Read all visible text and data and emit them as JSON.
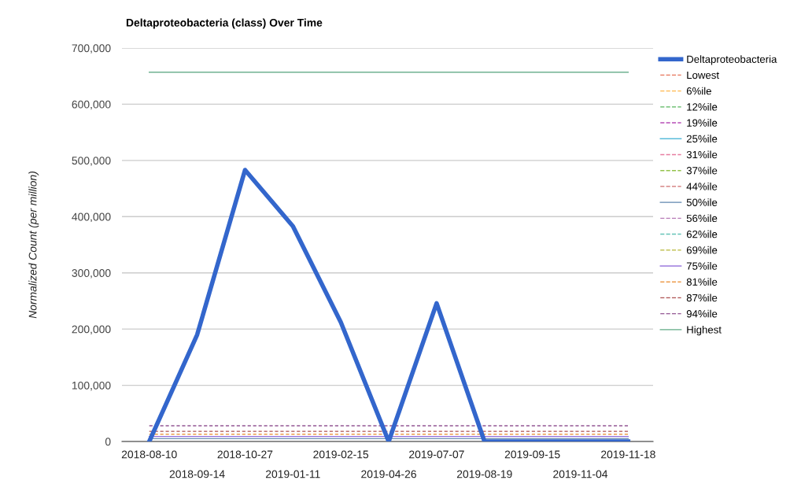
{
  "chart_data": {
    "type": "line",
    "title": "Deltaproteobacteria (class) Over Time",
    "ylabel": "Normalized Count (per million)",
    "categories": [
      "2018-08-10",
      "2018-09-14",
      "2018-10-27",
      "2019-01-11",
      "2019-02-15",
      "2019-04-26",
      "2019-07-07",
      "2019-08-19",
      "2019-09-15",
      "2019-11-04",
      "2019-11-18"
    ],
    "ylim": [
      0,
      700000
    ],
    "yticks": [
      0,
      {
        "value": 100000,
        "label": "100,000"
      },
      {
        "value": 200000,
        "label": "200,000"
      },
      {
        "value": 300000,
        "label": "300,000"
      },
      {
        "value": 400000,
        "label": "400,000"
      },
      {
        "value": 500000,
        "label": "500,000"
      },
      {
        "value": 600000,
        "label": "600,000"
      },
      {
        "value": 700000,
        "label": "700,000"
      }
    ],
    "grid": "y",
    "legend": "right",
    "marker": "none",
    "series": [
      {
        "name": "Deltaproteobacteria",
        "color": "#3366cc",
        "line_style": "solid",
        "values": [
          0,
          190000,
          483000,
          383000,
          212000,
          0,
          246000,
          0,
          0,
          0,
          0
        ]
      },
      {
        "name": "Lowest",
        "color": "#dc3912",
        "line_style": "dashed",
        "values": [
          null,
          null,
          null,
          null,
          null,
          null,
          null,
          null,
          null,
          null,
          null
        ]
      },
      {
        "name": "6%ile",
        "color": "#ff9900",
        "line_style": "dashed",
        "values": [
          null,
          null,
          null,
          null,
          null,
          null,
          null,
          null,
          null,
          null,
          null
        ]
      },
      {
        "name": "12%ile",
        "color": "#109618",
        "line_style": "dashed",
        "values": [
          null,
          null,
          null,
          null,
          null,
          null,
          null,
          null,
          null,
          null,
          null
        ]
      },
      {
        "name": "19%ile",
        "color": "#990099",
        "line_style": "dashed",
        "values": [
          null,
          null,
          null,
          null,
          null,
          null,
          null,
          null,
          null,
          null,
          null
        ]
      },
      {
        "name": "25%ile",
        "color": "#0099c6",
        "line_style": "solid",
        "values": [
          null,
          null,
          null,
          null,
          null,
          null,
          null,
          null,
          null,
          null,
          null
        ]
      },
      {
        "name": "31%ile",
        "color": "#dd4477",
        "line_style": "dashed",
        "values": [
          null,
          null,
          null,
          null,
          null,
          null,
          null,
          null,
          null,
          null,
          null
        ]
      },
      {
        "name": "37%ile",
        "color": "#66aa00",
        "line_style": "dashed",
        "values": [
          null,
          null,
          null,
          null,
          null,
          null,
          null,
          null,
          null,
          null,
          null
        ]
      },
      {
        "name": "44%ile",
        "color": "#b82e2e",
        "line_style": "dashed",
        "values": [
          null,
          null,
          null,
          null,
          null,
          null,
          null,
          null,
          null,
          null,
          null
        ]
      },
      {
        "name": "50%ile",
        "color": "#316395",
        "line_style": "solid",
        "values": [
          5000,
          5000,
          5000,
          5000,
          5000,
          5000,
          5000,
          5000,
          5000,
          5000,
          5000
        ]
      },
      {
        "name": "56%ile",
        "color": "#994499",
        "line_style": "dashed",
        "values": [
          null,
          null,
          null,
          null,
          null,
          null,
          null,
          null,
          null,
          null,
          null
        ]
      },
      {
        "name": "62%ile",
        "color": "#22aa99",
        "line_style": "dashed",
        "values": [
          null,
          null,
          null,
          null,
          null,
          null,
          null,
          null,
          null,
          null,
          null
        ]
      },
      {
        "name": "69%ile",
        "color": "#aaaa11",
        "line_style": "dashed",
        "values": [
          null,
          null,
          null,
          null,
          null,
          null,
          null,
          null,
          null,
          null,
          null
        ]
      },
      {
        "name": "75%ile",
        "color": "#6633cc",
        "line_style": "solid",
        "values": [
          9000,
          9000,
          9000,
          9000,
          9000,
          9000,
          9000,
          9000,
          9000,
          9000,
          9000
        ]
      },
      {
        "name": "81%ile",
        "color": "#e67300",
        "line_style": "dashed",
        "values": [
          13000,
          13000,
          13000,
          13000,
          13000,
          13000,
          13000,
          13000,
          13000,
          13000,
          13000
        ]
      },
      {
        "name": "87%ile",
        "color": "#8b0707",
        "line_style": "dashed",
        "values": [
          18000,
          18000,
          18000,
          18000,
          18000,
          18000,
          18000,
          18000,
          18000,
          18000,
          18000
        ]
      },
      {
        "name": "94%ile",
        "color": "#651067",
        "line_style": "dashed",
        "values": [
          28000,
          28000,
          28000,
          28000,
          28000,
          28000,
          28000,
          28000,
          28000,
          28000,
          28000
        ]
      },
      {
        "name": "Highest",
        "color": "#329262",
        "line_style": "solid",
        "values": [
          657000,
          657000,
          657000,
          657000,
          657000,
          657000,
          657000,
          657000,
          657000,
          657000,
          657000
        ]
      }
    ]
  }
}
